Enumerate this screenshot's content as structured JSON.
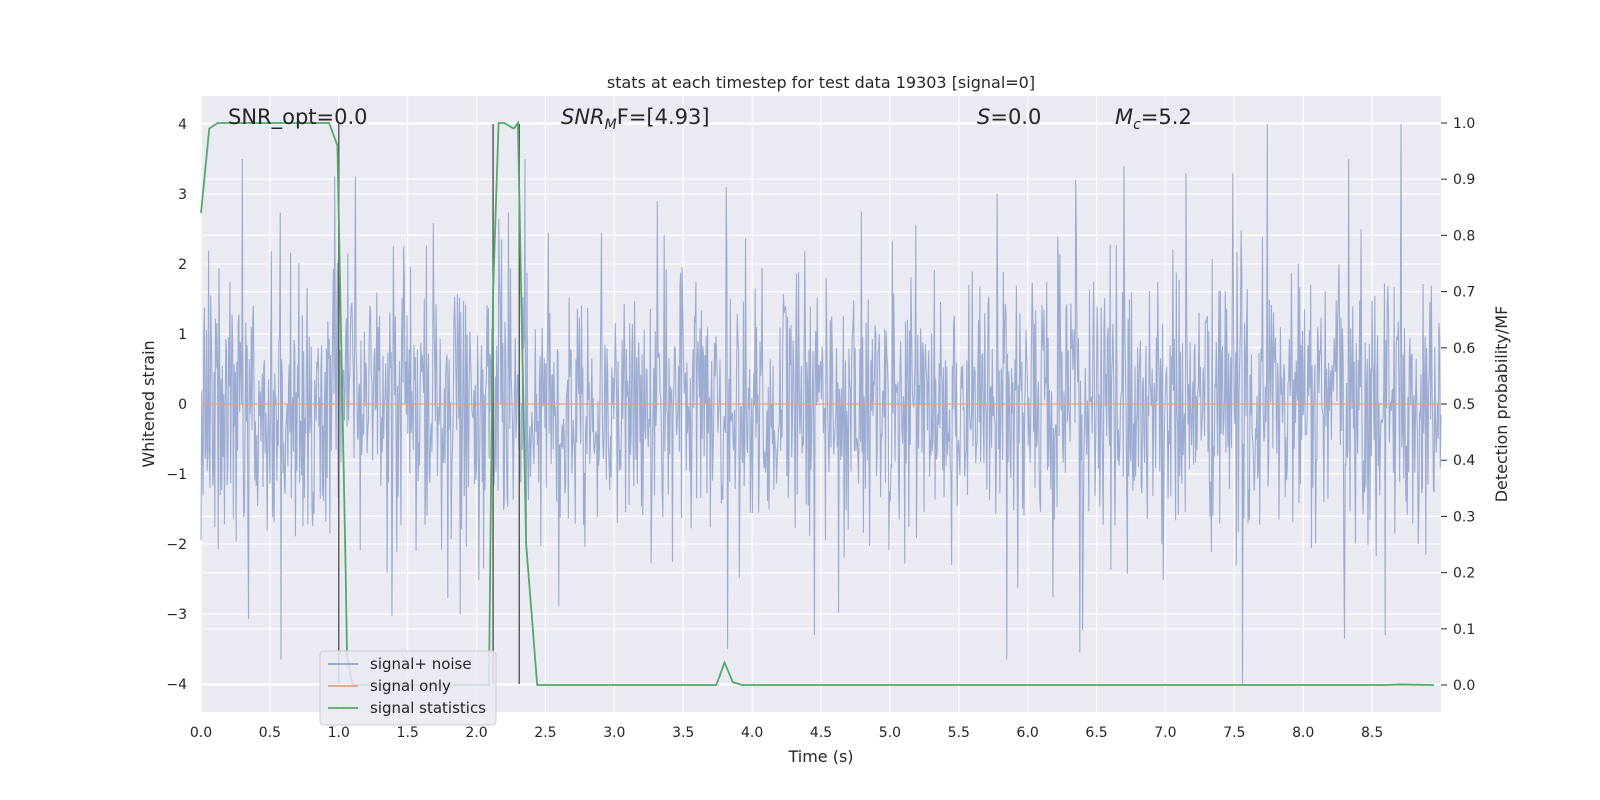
{
  "chart_data": {
    "type": "line",
    "title": "stats at each timestep for test data 19303 [signal=0]",
    "xlabel": "Time (s)",
    "ylabel": "Whitened strain",
    "y2label": "Detection probability/MF",
    "xlim": [
      0,
      9
    ],
    "ylim": [
      -4.4,
      4.4
    ],
    "y2lim": [
      -0.048,
      1.048
    ],
    "xticks": [
      "0.0",
      "0.5",
      "1.0",
      "1.5",
      "2.0",
      "2.5",
      "3.0",
      "3.5",
      "4.0",
      "4.5",
      "5.0",
      "5.5",
      "6.0",
      "6.5",
      "7.0",
      "7.5",
      "8.0",
      "8.5"
    ],
    "xtick_values": [
      0,
      0.5,
      1,
      1.5,
      2,
      2.5,
      3,
      3.5,
      4,
      4.5,
      5,
      5.5,
      6,
      6.5,
      7,
      7.5,
      8,
      8.5
    ],
    "yticks": [
      "−4",
      "−3",
      "−2",
      "−1",
      "0",
      "1",
      "2",
      "3",
      "4"
    ],
    "ytick_values": [
      -4,
      -3,
      -2,
      -1,
      0,
      1,
      2,
      3,
      4
    ],
    "y2ticks": [
      "0.0",
      "0.1",
      "0.2",
      "0.3",
      "0.4",
      "0.5",
      "0.6",
      "0.7",
      "0.8",
      "0.9",
      "1.0"
    ],
    "y2tick_values": [
      0,
      0.1,
      0.2,
      0.3,
      0.4,
      0.5,
      0.6,
      0.7,
      0.8,
      0.9,
      1.0
    ],
    "grid": true,
    "legend_position": "lower-left",
    "annotations": {
      "snr_opt": "SNR_opt=0.0",
      "snr_mf_main": "SNR",
      "snr_mf_sub": "M",
      "snr_mf_rest": "F=[4.93]",
      "s_main": "S",
      "s_rest": "=0.0",
      "mc_main": "M",
      "mc_sub": "c",
      "mc_rest": "=5.2"
    },
    "series": [
      {
        "name": "signal+ noise",
        "color": "#8da0cb",
        "kind": "noise",
        "amplitude_std": 1.0,
        "n_points": 1800
      },
      {
        "name": "signal only",
        "color": "#e0a080",
        "x": [
          0,
          9
        ],
        "y": [
          0,
          0
        ]
      },
      {
        "name": "signal statistics",
        "color": "#55a868",
        "axis": "right",
        "x": [
          0.0,
          0.06,
          0.12,
          0.2,
          0.3,
          0.5,
          0.7,
          0.85,
          0.93,
          0.99,
          1.05,
          1.06,
          1.1,
          2.09,
          2.12,
          2.16,
          2.2,
          2.27,
          2.3,
          2.36,
          2.44,
          3.7,
          3.74,
          3.8,
          3.86,
          3.93,
          4.0,
          8.6,
          8.7,
          8.95
        ],
        "y": [
          0.84,
          0.99,
          1.0,
          1.0,
          1.0,
          1.0,
          1.0,
          1.0,
          1.0,
          0.96,
          0.2,
          0.05,
          0.0,
          0.0,
          0.7,
          1.0,
          1.0,
          0.99,
          1.0,
          0.25,
          0.0,
          0.0,
          0.0,
          0.04,
          0.005,
          0.0,
          0.0,
          0.0,
          0.001,
          0.0
        ]
      }
    ],
    "vertical_lines": [
      1.0,
      2.12,
      2.31
    ],
    "extreme_spikes": [
      {
        "x": 0.3,
        "y": 3.5
      },
      {
        "x": 0.97,
        "y": 3.25
      },
      {
        "x": 1.12,
        "y": 3.25
      },
      {
        "x": 2.35,
        "y": 3.5
      },
      {
        "x": 3.81,
        "y": 3.1
      },
      {
        "x": 5.78,
        "y": 3.0
      },
      {
        "x": 6.35,
        "y": 3.2
      },
      {
        "x": 6.7,
        "y": 3.4
      },
      {
        "x": 7.49,
        "y": 3.3
      },
      {
        "x": 7.74,
        "y": 4.0
      },
      {
        "x": 8.71,
        "y": 4.0
      },
      {
        "x": 8.33,
        "y": 3.5
      },
      {
        "x": 0.58,
        "y": -3.65
      },
      {
        "x": 1.88,
        "y": -3.0
      },
      {
        "x": 3.82,
        "y": -3.5
      },
      {
        "x": 5.85,
        "y": -3.65
      },
      {
        "x": 6.38,
        "y": -3.55
      },
      {
        "x": 7.56,
        "y": -4.0
      },
      {
        "x": 8.3,
        "y": -3.35
      },
      {
        "x": 4.45,
        "y": -3.3
      }
    ]
  }
}
